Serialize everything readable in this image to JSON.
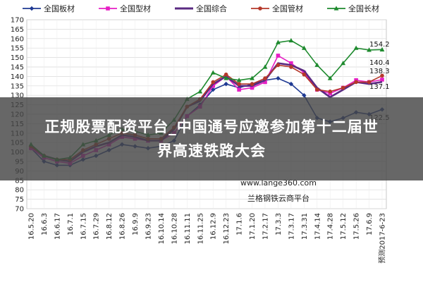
{
  "chart_data": {
    "type": "line",
    "title": "",
    "xlabel": "",
    "ylabel": "",
    "ylim": [
      70,
      170
    ],
    "yticks": [
      70,
      75,
      80,
      85,
      90,
      95,
      100,
      105,
      110,
      115,
      120,
      125,
      130,
      135,
      140,
      145,
      150,
      155,
      160,
      165,
      170
    ],
    "grid": true,
    "legend_position": "top",
    "x": [
      "16.5.20",
      "16.6.3",
      "16.6.17",
      "16.7.1",
      "16.7.15",
      "16.7.29",
      "16.8.12",
      "16.8.26",
      "16.9.9",
      "16.9.23",
      "16.10.14",
      "16.10.28",
      "16.11.11",
      "16.11.25",
      "16.12.9",
      "16.12.23",
      "17.1.6",
      "17.1.20",
      "17.2.17",
      "17.3.3",
      "17.3.17",
      "17.3.31",
      "17.4.14",
      "17.4.28",
      "17.5.12",
      "17.5.26",
      "17.6.9",
      "预测2017-6-23"
    ],
    "series": [
      {
        "name": "全国板材",
        "color": "#1f3a93",
        "marker": "diamond",
        "values": [
          102,
          95,
          93,
          93,
          96,
          98,
          101,
          104,
          103,
          102,
          103,
          106,
          119,
          125,
          133,
          136,
          134,
          136,
          138,
          139,
          136,
          130,
          118,
          116,
          118,
          121,
          120,
          122.5
        ]
      },
      {
        "name": "全国型材",
        "color": "#e61fc4",
        "marker": "square",
        "values": [
          102,
          97,
          95,
          94,
          98,
          101,
          104,
          108,
          107,
          106,
          106,
          110,
          119,
          124,
          135,
          140,
          133,
          134,
          137,
          151,
          147,
          142,
          133,
          131,
          134,
          138,
          137,
          138.3
        ]
      },
      {
        "name": "全国综合",
        "color": "#5a2a82",
        "marker": "none",
        "values": [
          103,
          98,
          96,
          95,
          100,
          103,
          105,
          109,
          108,
          106,
          106,
          112,
          124,
          127,
          136,
          140,
          135,
          135,
          138,
          147,
          146,
          143,
          134,
          129,
          133,
          137,
          136,
          137.1
        ]
      },
      {
        "name": "全国管材",
        "color": "#b5382a",
        "marker": "circle",
        "values": [
          103,
          98,
          96,
          96,
          101,
          104,
          107,
          110,
          109,
          107,
          107,
          113,
          124,
          128,
          137,
          141,
          136,
          136,
          139,
          146,
          145,
          141,
          133,
          132,
          134,
          137,
          137,
          140.4
        ]
      },
      {
        "name": "全国长材",
        "color": "#1e8a2e",
        "marker": "triangle",
        "values": [
          104,
          98,
          96,
          97,
          104,
          106,
          109,
          112,
          111,
          109,
          110,
          117,
          128,
          132,
          142,
          139,
          138,
          139,
          145,
          158,
          159,
          155,
          146,
          139,
          147,
          155,
          154,
          154.2
        ]
      }
    ],
    "end_labels": [
      "154.2",
      "140.4",
      "138.3",
      "137.1",
      "122.5"
    ],
    "watermark": "www.lange360.com",
    "source_note": "兰格钢铁云商平台"
  },
  "overlay": {
    "line1": "正规股票配资平台_中国通号应邀参加第十二届世",
    "line2": "界高速铁路大会"
  }
}
